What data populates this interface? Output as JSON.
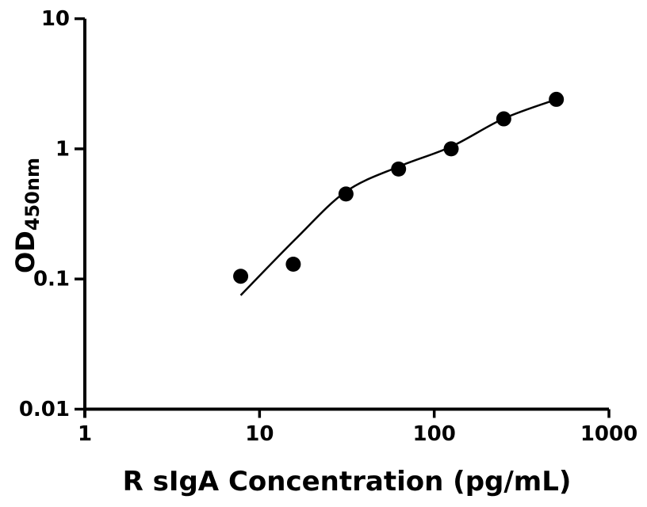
{
  "figure": {
    "background": "#ffffff"
  },
  "chart_data": {
    "type": "scatter",
    "title": "",
    "xlabel": "R sIgA Concentration (pg/mL)",
    "ylabel": "OD450nm",
    "ylabel_main": "OD",
    "ylabel_sub": "450nm",
    "x_scale": "log",
    "y_scale": "log",
    "xlim": [
      1,
      1000
    ],
    "ylim": [
      0.01,
      10
    ],
    "x_ticks": [
      1,
      10,
      100,
      1000
    ],
    "x_tick_labels": [
      "1",
      "10",
      "100",
      "1000"
    ],
    "y_ticks": [
      0.01,
      0.1,
      1,
      10
    ],
    "y_tick_labels": [
      "0.01",
      "0.1",
      "1",
      "10"
    ],
    "grid": false,
    "series": [
      {
        "name": "standard-points",
        "marker": "circle",
        "marker_radius_px": 9.5,
        "color": "#000000",
        "x": [
          7.8,
          15.6,
          31.25,
          62.5,
          125,
          250,
          500
        ],
        "y": [
          0.105,
          0.13,
          0.45,
          0.7,
          1.0,
          1.7,
          2.4
        ]
      }
    ],
    "fit_curve": {
      "name": "standard-curve-fit-line",
      "color": "#000000",
      "x": [
        7.8,
        16.2,
        31.25,
        62.5,
        125,
        250,
        500
      ],
      "y": [
        0.075,
        0.205,
        0.47,
        0.73,
        1.04,
        1.71,
        2.4
      ]
    },
    "colors": {
      "points": "#000000",
      "curve": "#000000",
      "axis": "#000000",
      "background": "#ffffff"
    }
  }
}
